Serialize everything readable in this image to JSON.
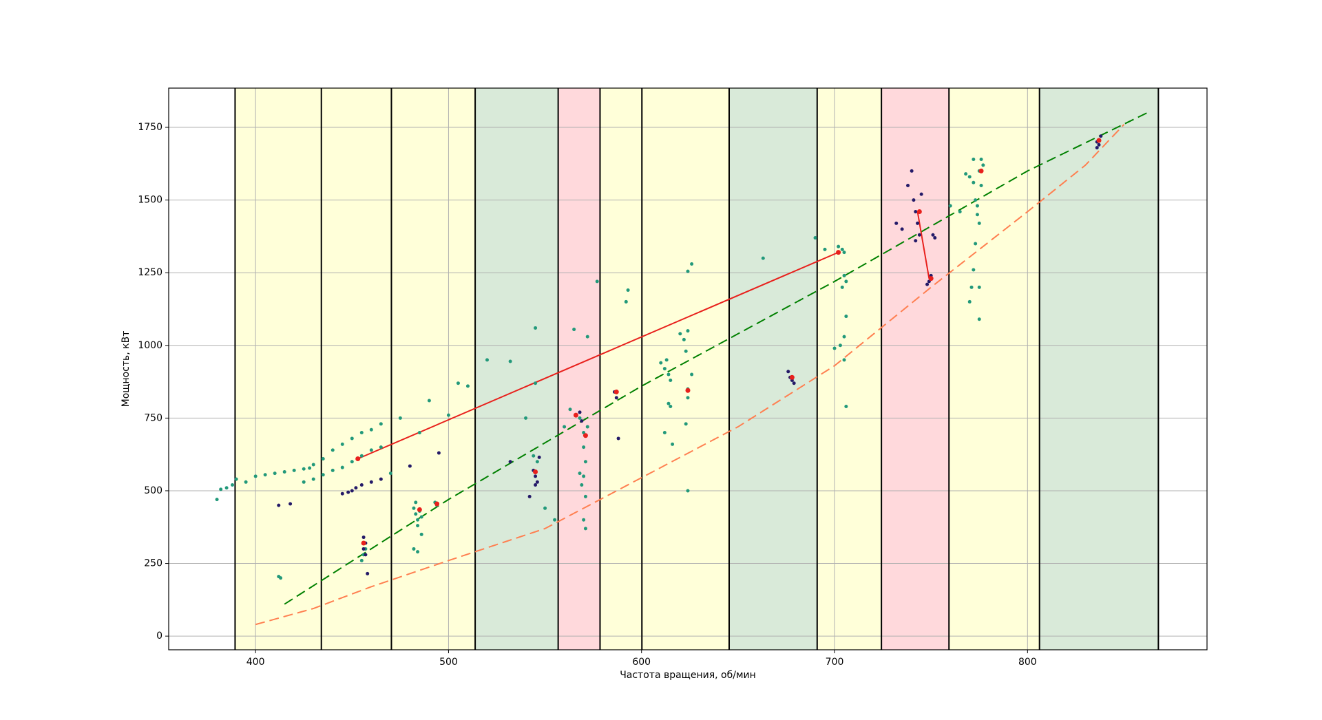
{
  "chart_data": {
    "type": "scatter",
    "x_label": "Частота вращения, об/мин",
    "y_label": "Мощность, кВт",
    "xlim": [
      355,
      893
    ],
    "ylim": [
      -47,
      1885
    ],
    "xticks": [
      400,
      500,
      600,
      700,
      800
    ],
    "yticks": [
      0,
      250,
      500,
      750,
      1000,
      1250,
      1500,
      1750
    ],
    "grid": true,
    "band_edges": [
      389.4,
      434.1,
      470.4,
      513.8,
      556.8,
      578.5,
      600.2,
      645.4,
      691.0,
      724.3,
      759.3,
      806.2,
      867.8
    ],
    "band_colors": [
      "#ffffd9",
      "#ffffd9",
      "#ffffd9",
      "#d9ead9",
      "#ffd9dc",
      "#ffffd9",
      "#ffffd9",
      "#d9ead9",
      "#ffffd9",
      "#ffd9dc",
      "#ffffd9",
      "#d9ead9"
    ],
    "edge_color": "#000000",
    "lines": [
      {
        "color": "#008000",
        "dashed": true,
        "x": [
          415,
          500,
          600,
          700,
          800,
          862
        ],
        "y": [
          110,
          470,
          860,
          1220,
          1600,
          1800
        ]
      },
      {
        "color": "#ff7f50",
        "dashed": true,
        "x": [
          400,
          430,
          460,
          500,
          550,
          600,
          650,
          700,
          750,
          800,
          830,
          850
        ],
        "y": [
          40,
          95,
          170,
          260,
          370,
          545,
          720,
          930,
          1200,
          1460,
          1620,
          1760
        ]
      },
      {
        "color": "#e8201c",
        "dashed": false,
        "x": [
          453,
          702
        ],
        "y": [
          610,
          1320
        ]
      },
      {
        "color": "#e8201c",
        "dashed": false,
        "x": [
          743,
          749
        ],
        "y": [
          1460,
          1230
        ]
      }
    ],
    "series": [
      {
        "color": "#22997a",
        "radius": 2.5,
        "x": [
          380,
          382,
          385,
          388,
          390,
          395,
          400,
          405,
          410,
          415,
          420,
          425,
          428,
          430,
          435,
          440,
          445,
          450,
          455,
          460,
          465,
          475,
          485,
          490,
          500,
          505,
          510,
          520,
          532,
          545,
          565,
          572,
          577,
          592,
          593,
          425,
          430,
          435,
          440,
          445,
          450,
          455,
          460,
          465,
          470,
          412,
          413,
          455,
          456,
          457,
          482,
          483,
          484,
          485,
          486,
          484,
          483,
          482,
          484,
          486,
          493,
          494,
          544,
          546,
          545,
          540,
          563,
          566,
          568,
          570,
          570,
          571,
          570,
          569,
          571,
          570,
          571,
          568,
          572,
          560,
          555,
          550,
          610,
          612,
          614,
          615,
          613,
          614,
          615,
          612,
          616,
          620,
          622,
          624,
          623,
          624,
          624,
          623,
          624,
          626,
          624,
          626,
          663,
          690,
          695,
          702,
          704,
          705,
          706,
          705,
          704,
          706,
          705,
          703,
          705,
          706,
          700,
          770,
          772,
          773,
          774,
          775,
          775,
          776,
          777,
          776,
          774,
          773,
          772,
          771,
          770,
          775,
          775,
          765,
          760,
          768,
          772
        ],
        "y": [
          470,
          505,
          510,
          520,
          540,
          530,
          550,
          555,
          560,
          565,
          570,
          575,
          578,
          590,
          610,
          640,
          660,
          680,
          700,
          710,
          730,
          750,
          700,
          810,
          760,
          870,
          860,
          950,
          945,
          1060,
          1055,
          1030,
          1220,
          1150,
          1190,
          530,
          540,
          555,
          570,
          580,
          600,
          620,
          640,
          650,
          560,
          205,
          200,
          260,
          280,
          300,
          440,
          420,
          400,
          430,
          410,
          380,
          460,
          300,
          290,
          350,
          460,
          450,
          620,
          600,
          870,
          750,
          780,
          760,
          750,
          700,
          650,
          600,
          550,
          520,
          480,
          400,
          370,
          560,
          720,
          720,
          400,
          440,
          940,
          920,
          900,
          880,
          950,
          800,
          790,
          700,
          660,
          1040,
          1020,
          1050,
          980,
          850,
          820,
          730,
          500,
          1280,
          1255,
          900,
          1300,
          1370,
          1330,
          1340,
          1330,
          1320,
          1220,
          1240,
          1200,
          1100,
          1030,
          1000,
          950,
          790,
          990,
          1580,
          1560,
          1500,
          1450,
          1420,
          1600,
          1640,
          1620,
          1550,
          1480,
          1350,
          1260,
          1200,
          1150,
          1090,
          1200,
          1460,
          1480,
          1590,
          1640
        ]
      },
      {
        "color": "#241a68",
        "radius": 2.5,
        "x": [
          445,
          448,
          450,
          452,
          455,
          460,
          465,
          412,
          418,
          456,
          457,
          456,
          457,
          458,
          480,
          495,
          544,
          545,
          546,
          545,
          542,
          532,
          547,
          568,
          569,
          566,
          586,
          587,
          588,
          676,
          677,
          678,
          679,
          740,
          741,
          742,
          743,
          744,
          742,
          745,
          738,
          735,
          732,
          749,
          750,
          748,
          751,
          752,
          836,
          837,
          838,
          836
        ],
        "y": [
          490,
          495,
          500,
          510,
          520,
          530,
          540,
          450,
          455,
          340,
          320,
          300,
          280,
          215,
          585,
          630,
          570,
          550,
          530,
          520,
          480,
          600,
          615,
          770,
          740,
          760,
          840,
          820,
          680,
          910,
          890,
          880,
          870,
          1600,
          1500,
          1460,
          1420,
          1380,
          1360,
          1520,
          1550,
          1400,
          1420,
          1220,
          1240,
          1210,
          1380,
          1370,
          1700,
          1690,
          1720,
          1680
        ]
      },
      {
        "color": "#e8201c",
        "radius": 3.5,
        "x": [
          453,
          456,
          485,
          494,
          545,
          566,
          571,
          587,
          624,
          678,
          702,
          744,
          750,
          776,
          837
        ],
        "y": [
          610,
          320,
          435,
          455,
          565,
          760,
          690,
          840,
          845,
          890,
          1320,
          1460,
          1230,
          1600,
          1705
        ]
      }
    ]
  }
}
